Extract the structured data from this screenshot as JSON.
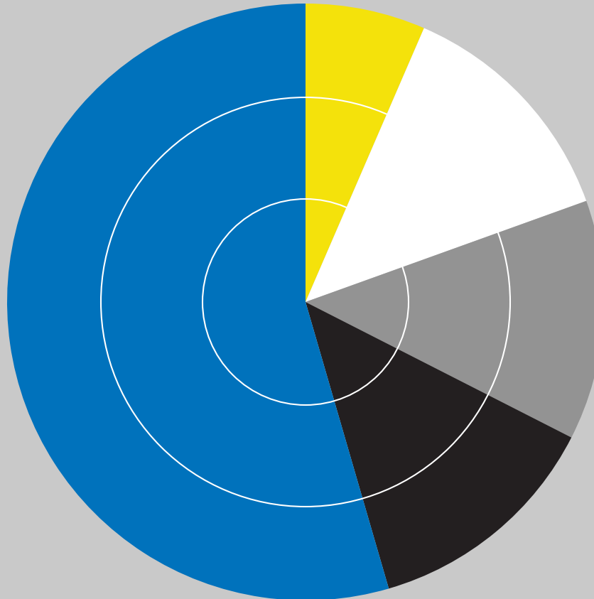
{
  "chart_data": {
    "type": "pie",
    "values": [
      6.5,
      13,
      13,
      13,
      54.5
    ],
    "colors": [
      "#f4e20b",
      "#ffffff",
      "#939393",
      "#231f20",
      "#0072bc"
    ]
  }
}
